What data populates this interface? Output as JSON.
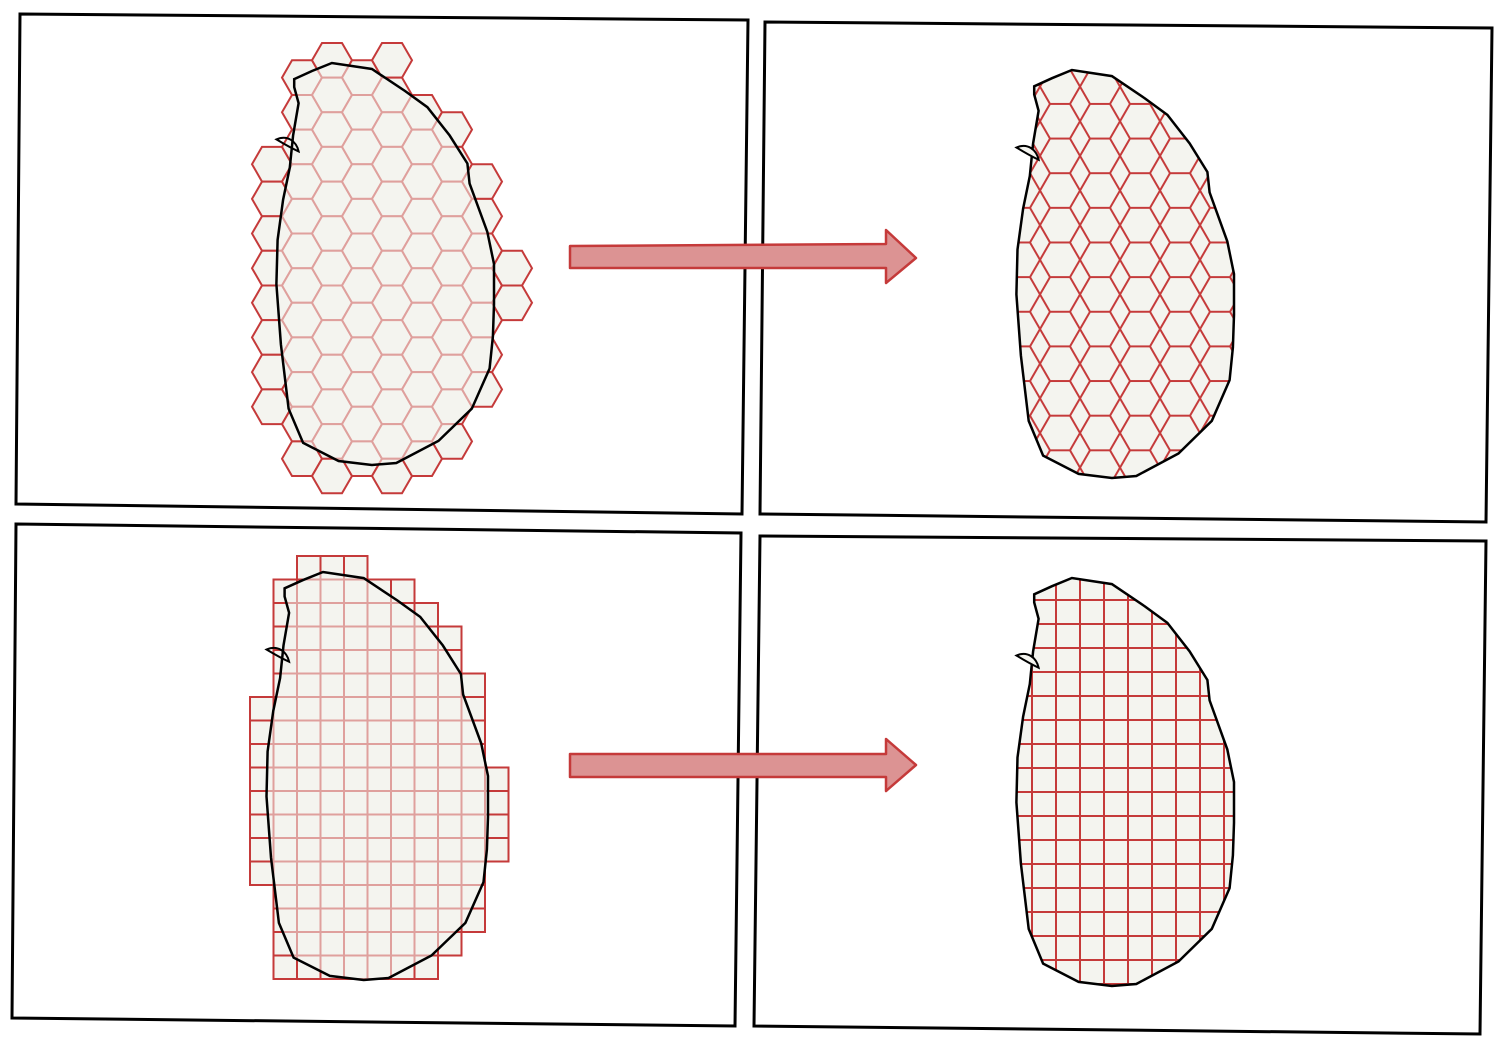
{
  "colors": {
    "frame": "#000000",
    "coastline": "#000000",
    "land_fill": "#f4f4ef",
    "grid_line": "#c53a3a",
    "arrow_fill": "#dc9393",
    "arrow_stroke": "#c53a3a"
  },
  "panels": [
    {
      "id": "hex-full",
      "grid": "hexagon",
      "clipped": false
    },
    {
      "id": "hex-clipped",
      "grid": "hexagon",
      "clipped": true
    },
    {
      "id": "square-full",
      "grid": "square",
      "clipped": false
    },
    {
      "id": "square-clipped",
      "grid": "square",
      "clipped": true
    }
  ],
  "arrows": [
    {
      "from": "hex-full",
      "to": "hex-clipped",
      "icon": "right-arrow-icon"
    },
    {
      "from": "square-full",
      "to": "square-clipped",
      "icon": "right-arrow-icon"
    }
  ]
}
